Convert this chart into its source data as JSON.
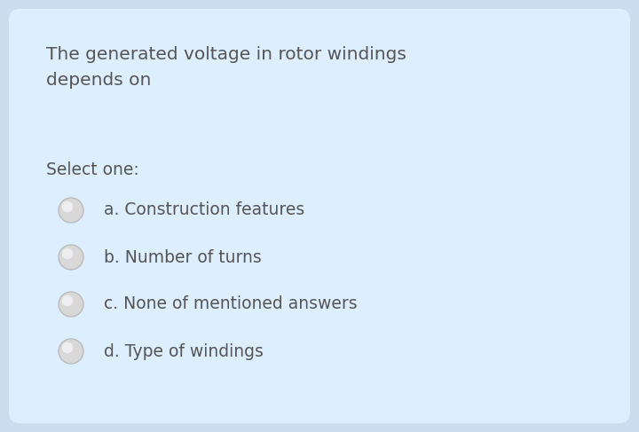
{
  "outer_bg": "#ccddef",
  "card_color": "#ddeeff",
  "question": "The generated voltage in rotor windings\ndepends on",
  "select_label": "Select one:",
  "options": [
    "a. Construction features",
    "b. Number of turns",
    "c. None of mentioned answers",
    "d. Type of windings"
  ],
  "text_color": "#555555",
  "question_fontsize": 14.5,
  "select_fontsize": 13.5,
  "option_fontsize": 13.5,
  "radio_color_face": "#d8d8d8",
  "radio_color_edge": "#bbbbbb",
  "radio_highlight": "#eeeeee",
  "figsize": [
    7.2,
    4.87
  ],
  "dpi": 100
}
